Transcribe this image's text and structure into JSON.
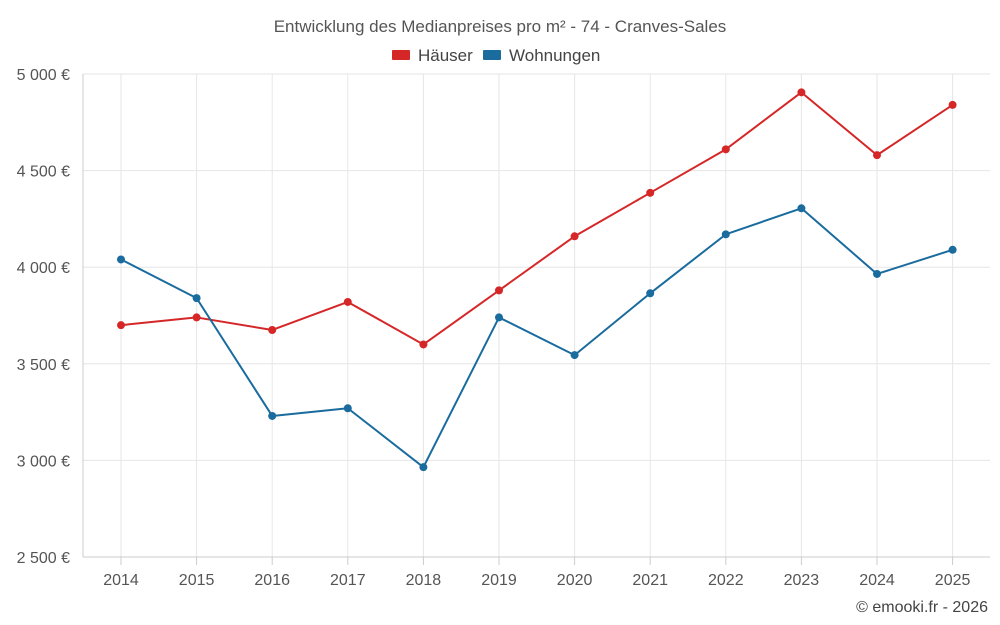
{
  "chart_data": {
    "type": "line",
    "title": "Entwicklung des Medianpreises pro m² - 74 - Cranves-Sales",
    "xlabel": "",
    "ylabel": "",
    "categories": [
      "2014",
      "2015",
      "2016",
      "2017",
      "2018",
      "2019",
      "2020",
      "2021",
      "2022",
      "2023",
      "2024",
      "2025"
    ],
    "ylim": [
      2500,
      5000
    ],
    "yticks": [
      2500,
      3000,
      3500,
      4000,
      4500,
      5000
    ],
    "ytick_labels": [
      "2 500 €",
      "3 000 €",
      "3 500 €",
      "4 000 €",
      "4 500 €",
      "5 000 €"
    ],
    "grid": true,
    "legend_position": "top-center",
    "series": [
      {
        "name": "Häuser",
        "color": "#d62728",
        "values": [
          3700,
          3740,
          3675,
          3820,
          3600,
          3880,
          4160,
          4385,
          4610,
          4905,
          4580,
          4840
        ]
      },
      {
        "name": "Wohnungen",
        "color": "#1a6b9e",
        "values": [
          4040,
          3840,
          3230,
          3270,
          2965,
          3740,
          3545,
          3865,
          4170,
          4305,
          3965,
          4090
        ]
      }
    ]
  },
  "credit": "© emooki.fr - 2026"
}
